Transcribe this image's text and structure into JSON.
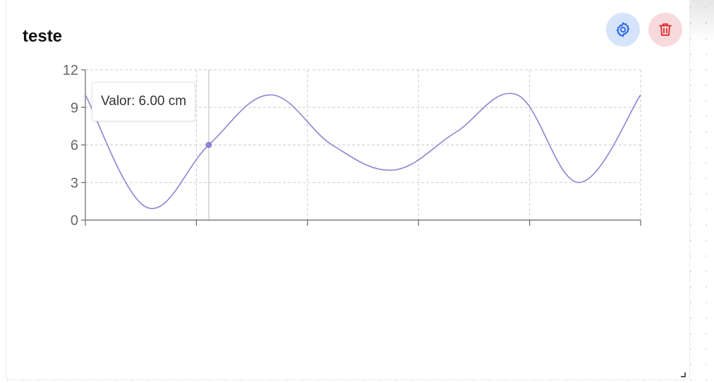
{
  "widget": {
    "title": "teste"
  },
  "toolbar": {
    "settings_icon": "gear-icon",
    "delete_icon": "trash-icon",
    "settings_color": "#2563eb",
    "settings_bg": "#d6e4fb",
    "delete_color": "#dc2626",
    "delete_bg": "#f8d9dc"
  },
  "tooltip": {
    "text": "Valor: 6.00 cm"
  },
  "chart_data": {
    "type": "line",
    "x": [
      0,
      0.5,
      1,
      1.5,
      2,
      2.5,
      3,
      3.5,
      4,
      4.5
    ],
    "values": [
      10,
      1,
      6,
      10,
      6,
      4,
      7,
      10,
      3,
      10
    ],
    "ylim": [
      0,
      12
    ],
    "yticks": [
      0,
      3,
      6,
      9,
      12
    ],
    "x_tick_labels": [
      "",
      "",
      "",
      "",
      "",
      ""
    ],
    "grid": true,
    "line_color": "#8a84d4",
    "highlight_index": 2,
    "highlight_value": 6
  }
}
